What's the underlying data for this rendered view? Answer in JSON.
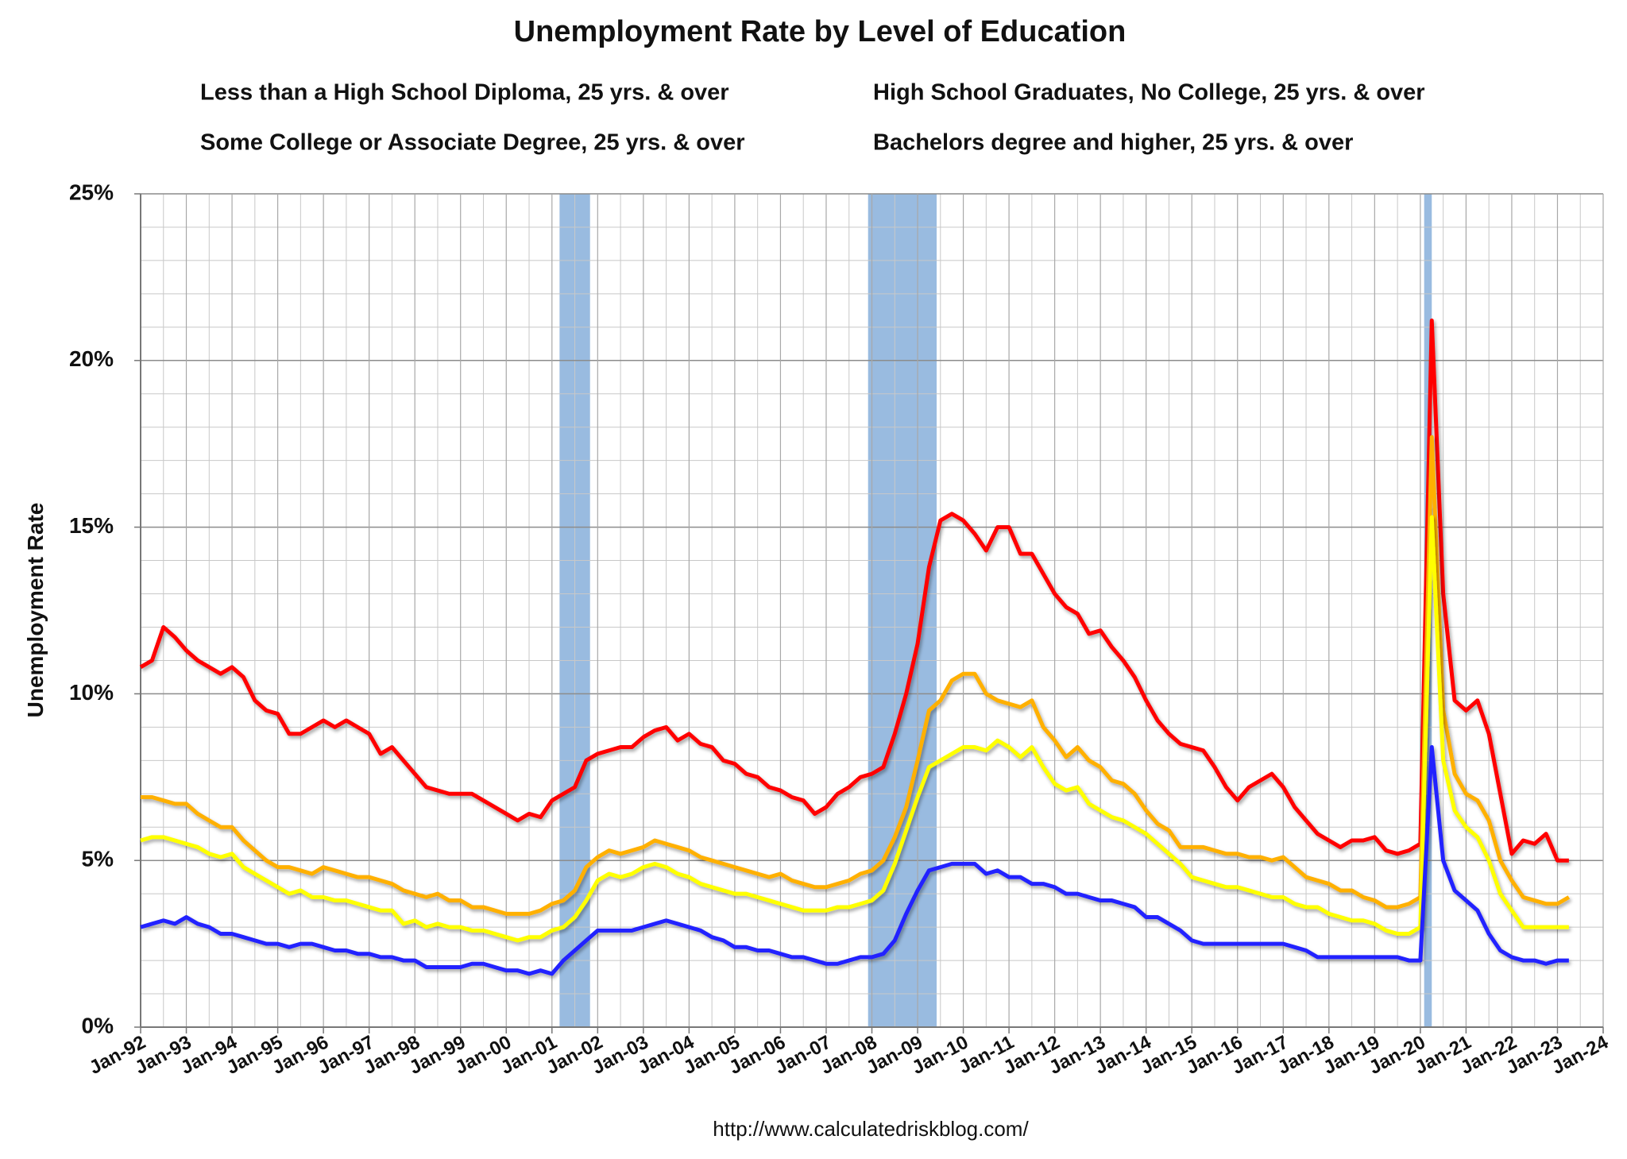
{
  "chart_data": {
    "type": "line",
    "title": "Unemployment Rate by Level of Education",
    "y_label": "Unemployment Rate",
    "source": "http://www.calculatedriskblog.com/",
    "legend": "top",
    "grid": true,
    "minor_grid": true,
    "recession_color": "#99bbe0",
    "recessions": [
      [
        "Mar-01",
        "Nov-01"
      ],
      [
        "Dec-07",
        "Jun-09"
      ],
      [
        "Feb-20",
        "Apr-20"
      ]
    ],
    "xlim": [
      "Jan-92",
      "Jan-24"
    ],
    "xticks": [
      "Jan-92",
      "Jan-93",
      "Jan-94",
      "Jan-95",
      "Jan-96",
      "Jan-97",
      "Jan-98",
      "Jan-99",
      "Jan-00",
      "Jan-01",
      "Jan-02",
      "Jan-03",
      "Jan-04",
      "Jan-05",
      "Jan-06",
      "Jan-07",
      "Jan-08",
      "Jan-09",
      "Jan-10",
      "Jan-11",
      "Jan-12",
      "Jan-13",
      "Jan-14",
      "Jan-15",
      "Jan-16",
      "Jan-17",
      "Jan-18",
      "Jan-19",
      "Jan-20",
      "Jan-21",
      "Jan-22",
      "Jan-23",
      "Jan-24"
    ],
    "ylim": [
      0,
      25
    ],
    "yticks": [
      {
        "value": 0,
        "label": "0%"
      },
      {
        "value": 5,
        "label": "5%"
      },
      {
        "value": 10,
        "label": "10%"
      },
      {
        "value": 15,
        "label": "15%"
      },
      {
        "value": 20,
        "label": "20%"
      },
      {
        "value": 25,
        "label": "25%"
      }
    ],
    "x": [
      "Jan-92",
      "Apr-92",
      "Jul-92",
      "Oct-92",
      "Jan-93",
      "Apr-93",
      "Jul-93",
      "Oct-93",
      "Jan-94",
      "Apr-94",
      "Jul-94",
      "Oct-94",
      "Jan-95",
      "Apr-95",
      "Jul-95",
      "Oct-95",
      "Jan-96",
      "Apr-96",
      "Jul-96",
      "Oct-96",
      "Jan-97",
      "Apr-97",
      "Jul-97",
      "Oct-97",
      "Jan-98",
      "Apr-98",
      "Jul-98",
      "Oct-98",
      "Jan-99",
      "Apr-99",
      "Jul-99",
      "Oct-99",
      "Jan-00",
      "Apr-00",
      "Jul-00",
      "Oct-00",
      "Jan-01",
      "Apr-01",
      "Jul-01",
      "Oct-01",
      "Jan-02",
      "Apr-02",
      "Jul-02",
      "Oct-02",
      "Jan-03",
      "Apr-03",
      "Jul-03",
      "Oct-03",
      "Jan-04",
      "Apr-04",
      "Jul-04",
      "Oct-04",
      "Jan-05",
      "Apr-05",
      "Jul-05",
      "Oct-05",
      "Jan-06",
      "Apr-06",
      "Jul-06",
      "Oct-06",
      "Jan-07",
      "Apr-07",
      "Jul-07",
      "Oct-07",
      "Jan-08",
      "Apr-08",
      "Jul-08",
      "Oct-08",
      "Jan-09",
      "Apr-09",
      "Jul-09",
      "Oct-09",
      "Jan-10",
      "Apr-10",
      "Jul-10",
      "Oct-10",
      "Jan-11",
      "Apr-11",
      "Jul-11",
      "Oct-11",
      "Jan-12",
      "Apr-12",
      "Jul-12",
      "Oct-12",
      "Jan-13",
      "Apr-13",
      "Jul-13",
      "Oct-13",
      "Jan-14",
      "Apr-14",
      "Jul-14",
      "Oct-14",
      "Jan-15",
      "Apr-15",
      "Jul-15",
      "Oct-15",
      "Jan-16",
      "Apr-16",
      "Jul-16",
      "Oct-16",
      "Jan-17",
      "Apr-17",
      "Jul-17",
      "Oct-17",
      "Jan-18",
      "Apr-18",
      "Jul-18",
      "Oct-18",
      "Jan-19",
      "Apr-19",
      "Jul-19",
      "Oct-19",
      "Jan-20",
      "Apr-20",
      "Jul-20",
      "Oct-20",
      "Jan-21",
      "Apr-21",
      "Jul-21",
      "Oct-21",
      "Jan-22",
      "Apr-22",
      "Jul-22",
      "Oct-22",
      "Jan-23",
      "Apr-23"
    ],
    "series": [
      {
        "name": "Less than a High School Diploma, 25 yrs. & over",
        "color": "#ff0000",
        "values": [
          10.8,
          11.0,
          12.0,
          11.7,
          11.3,
          11.0,
          10.8,
          10.6,
          10.8,
          10.5,
          9.8,
          9.5,
          9.4,
          8.8,
          8.8,
          9.0,
          9.2,
          9.0,
          9.2,
          9.0,
          8.8,
          8.2,
          8.4,
          8.0,
          7.6,
          7.2,
          7.1,
          7.0,
          7.0,
          7.0,
          6.8,
          6.6,
          6.4,
          6.2,
          6.4,
          6.3,
          6.8,
          7.0,
          7.2,
          8.0,
          8.2,
          8.3,
          8.4,
          8.4,
          8.7,
          8.9,
          9.0,
          8.6,
          8.8,
          8.5,
          8.4,
          8.0,
          7.9,
          7.6,
          7.5,
          7.2,
          7.1,
          6.9,
          6.8,
          6.4,
          6.6,
          7.0,
          7.2,
          7.5,
          7.6,
          7.8,
          8.8,
          10.0,
          11.5,
          13.8,
          15.2,
          15.4,
          15.2,
          14.8,
          14.3,
          15.0,
          15.0,
          14.2,
          14.2,
          13.6,
          13.0,
          12.6,
          12.4,
          11.8,
          11.9,
          11.4,
          11.0,
          10.5,
          9.8,
          9.2,
          8.8,
          8.5,
          8.4,
          8.3,
          7.8,
          7.2,
          6.8,
          7.2,
          7.4,
          7.6,
          7.2,
          6.6,
          6.2,
          5.8,
          5.6,
          5.4,
          5.6,
          5.6,
          5.7,
          5.3,
          5.2,
          5.3,
          5.5,
          21.2,
          13.0,
          9.8,
          9.5,
          9.8,
          8.8,
          7.0,
          5.2,
          5.6,
          5.5,
          5.8,
          5.0,
          5.0
        ]
      },
      {
        "name": "High School Graduates, No College, 25 yrs. & over",
        "color": "#ffb000",
        "values": [
          6.9,
          6.9,
          6.8,
          6.7,
          6.7,
          6.4,
          6.2,
          6.0,
          6.0,
          5.6,
          5.3,
          5.0,
          4.8,
          4.8,
          4.7,
          4.6,
          4.8,
          4.7,
          4.6,
          4.5,
          4.5,
          4.4,
          4.3,
          4.1,
          4.0,
          3.9,
          4.0,
          3.8,
          3.8,
          3.6,
          3.6,
          3.5,
          3.4,
          3.4,
          3.4,
          3.5,
          3.7,
          3.8,
          4.1,
          4.8,
          5.1,
          5.3,
          5.2,
          5.3,
          5.4,
          5.6,
          5.5,
          5.4,
          5.3,
          5.1,
          5.0,
          4.9,
          4.8,
          4.7,
          4.6,
          4.5,
          4.6,
          4.4,
          4.3,
          4.2,
          4.2,
          4.3,
          4.4,
          4.6,
          4.7,
          5.0,
          5.7,
          6.6,
          8.0,
          9.5,
          9.8,
          10.4,
          10.6,
          10.6,
          10.0,
          9.8,
          9.7,
          9.6,
          9.8,
          9.0,
          8.6,
          8.1,
          8.4,
          8.0,
          7.8,
          7.4,
          7.3,
          7.0,
          6.5,
          6.1,
          5.9,
          5.4,
          5.4,
          5.4,
          5.3,
          5.2,
          5.2,
          5.1,
          5.1,
          5.0,
          5.1,
          4.8,
          4.5,
          4.4,
          4.3,
          4.1,
          4.1,
          3.9,
          3.8,
          3.6,
          3.6,
          3.7,
          3.9,
          17.7,
          9.5,
          7.6,
          7.0,
          6.8,
          6.2,
          5.0,
          4.4,
          3.9,
          3.8,
          3.7,
          3.7,
          3.9
        ]
      },
      {
        "name": "Some College or Associate Degree, 25 yrs. & over",
        "color": "#ffff00",
        "values": [
          5.6,
          5.7,
          5.7,
          5.6,
          5.5,
          5.4,
          5.2,
          5.1,
          5.2,
          4.8,
          4.6,
          4.4,
          4.2,
          4.0,
          4.1,
          3.9,
          3.9,
          3.8,
          3.8,
          3.7,
          3.6,
          3.5,
          3.5,
          3.1,
          3.2,
          3.0,
          3.1,
          3.0,
          3.0,
          2.9,
          2.9,
          2.8,
          2.7,
          2.6,
          2.7,
          2.7,
          2.9,
          3.0,
          3.3,
          3.8,
          4.4,
          4.6,
          4.5,
          4.6,
          4.8,
          4.9,
          4.8,
          4.6,
          4.5,
          4.3,
          4.2,
          4.1,
          4.0,
          4.0,
          3.9,
          3.8,
          3.7,
          3.6,
          3.5,
          3.5,
          3.5,
          3.6,
          3.6,
          3.7,
          3.8,
          4.1,
          4.9,
          5.9,
          6.9,
          7.8,
          8.0,
          8.2,
          8.4,
          8.4,
          8.3,
          8.6,
          8.4,
          8.1,
          8.4,
          7.8,
          7.3,
          7.1,
          7.2,
          6.7,
          6.5,
          6.3,
          6.2,
          6.0,
          5.8,
          5.5,
          5.2,
          4.9,
          4.5,
          4.4,
          4.3,
          4.2,
          4.2,
          4.1,
          4.0,
          3.9,
          3.9,
          3.7,
          3.6,
          3.6,
          3.4,
          3.3,
          3.2,
          3.2,
          3.1,
          2.9,
          2.8,
          2.8,
          3.0,
          15.3,
          8.0,
          6.5,
          6.0,
          5.7,
          5.0,
          4.0,
          3.5,
          3.0,
          3.0,
          3.0,
          3.0,
          3.0
        ]
      },
      {
        "name": "Bachelors degree and higher, 25 yrs. & over",
        "color": "#2222ff",
        "values": [
          3.0,
          3.1,
          3.2,
          3.1,
          3.3,
          3.1,
          3.0,
          2.8,
          2.8,
          2.7,
          2.6,
          2.5,
          2.5,
          2.4,
          2.5,
          2.5,
          2.4,
          2.3,
          2.3,
          2.2,
          2.2,
          2.1,
          2.1,
          2.0,
          2.0,
          1.8,
          1.8,
          1.8,
          1.8,
          1.9,
          1.9,
          1.8,
          1.7,
          1.7,
          1.6,
          1.7,
          1.6,
          2.0,
          2.3,
          2.6,
          2.9,
          2.9,
          2.9,
          2.9,
          3.0,
          3.1,
          3.2,
          3.1,
          3.0,
          2.9,
          2.7,
          2.6,
          2.4,
          2.4,
          2.3,
          2.3,
          2.2,
          2.1,
          2.1,
          2.0,
          1.9,
          1.9,
          2.0,
          2.1,
          2.1,
          2.2,
          2.6,
          3.4,
          4.1,
          4.7,
          4.8,
          4.9,
          4.9,
          4.9,
          4.6,
          4.7,
          4.5,
          4.5,
          4.3,
          4.3,
          4.2,
          4.0,
          4.0,
          3.9,
          3.8,
          3.8,
          3.7,
          3.6,
          3.3,
          3.3,
          3.1,
          2.9,
          2.6,
          2.5,
          2.5,
          2.5,
          2.5,
          2.5,
          2.5,
          2.5,
          2.5,
          2.4,
          2.3,
          2.1,
          2.1,
          2.1,
          2.1,
          2.1,
          2.1,
          2.1,
          2.1,
          2.0,
          2.0,
          8.4,
          5.0,
          4.1,
          3.8,
          3.5,
          2.8,
          2.3,
          2.1,
          2.0,
          2.0,
          1.9,
          2.0,
          2.0
        ]
      }
    ]
  }
}
